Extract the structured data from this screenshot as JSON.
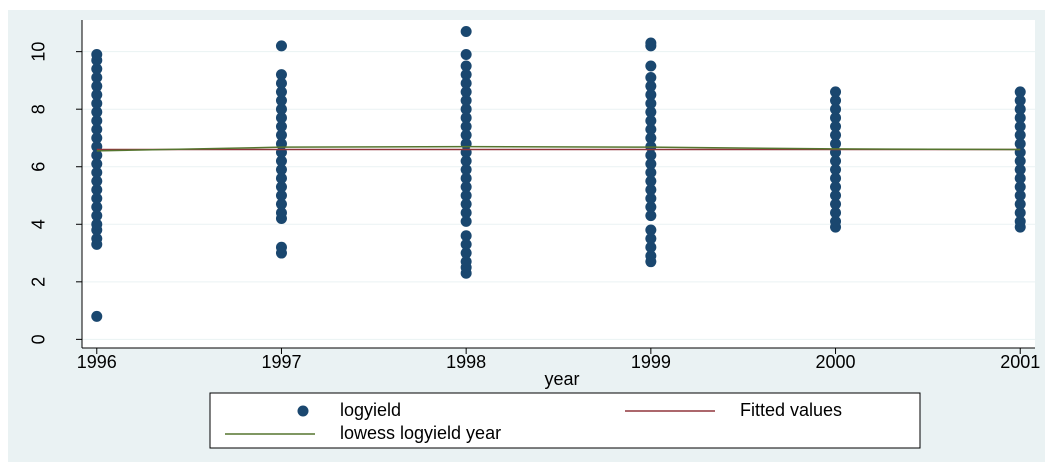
{
  "chart_data": {
    "type": "scatter",
    "x_label": "year",
    "xlim": [
      1995.92,
      2001.08
    ],
    "ylim": [
      -0.3,
      11.1
    ],
    "xticks": [
      1996,
      1997,
      1998,
      1999,
      2000,
      2001
    ],
    "yticks": [
      0,
      2,
      4,
      6,
      8,
      10
    ],
    "grid": true,
    "legend": "bottom",
    "series": [
      {
        "name": "logyield",
        "type": "scatter",
        "color": "#1a476f",
        "x": [
          1996,
          1996,
          1996,
          1996,
          1996,
          1996,
          1996,
          1996,
          1996,
          1996,
          1996,
          1996,
          1996,
          1996,
          1996,
          1996,
          1996,
          1996,
          1996,
          1996,
          1996,
          1996,
          1996,
          1996,
          1996,
          1997,
          1997,
          1997,
          1997,
          1997,
          1997,
          1997,
          1997,
          1997,
          1997,
          1997,
          1997,
          1997,
          1997,
          1997,
          1997,
          1997,
          1997,
          1997,
          1997,
          1997,
          1998,
          1998,
          1998,
          1998,
          1998,
          1998,
          1998,
          1998,
          1998,
          1998,
          1998,
          1998,
          1998,
          1998,
          1998,
          1998,
          1998,
          1998,
          1998,
          1998,
          1998,
          1998,
          1998,
          1998,
          1998,
          1998,
          1998,
          1999,
          1999,
          1999,
          1999,
          1999,
          1999,
          1999,
          1999,
          1999,
          1999,
          1999,
          1999,
          1999,
          1999,
          1999,
          1999,
          1999,
          1999,
          1999,
          1999,
          1999,
          1999,
          1999,
          1999,
          1999,
          2000,
          2000,
          2000,
          2000,
          2000,
          2000,
          2000,
          2000,
          2000,
          2000,
          2000,
          2000,
          2000,
          2000,
          2000,
          2000,
          2000,
          2001,
          2001,
          2001,
          2001,
          2001,
          2001,
          2001,
          2001,
          2001,
          2001,
          2001,
          2001,
          2001,
          2001,
          2001,
          2001,
          2001
        ],
        "values": [
          0.8,
          3.3,
          3.5,
          3.8,
          4.0,
          4.3,
          4.6,
          4.9,
          5.2,
          5.5,
          5.8,
          6.1,
          6.4,
          6.7,
          7.0,
          7.3,
          7.6,
          7.9,
          8.2,
          8.5,
          8.8,
          9.1,
          9.4,
          9.7,
          9.9,
          3.0,
          3.2,
          4.2,
          4.4,
          4.7,
          5.0,
          5.3,
          5.6,
          5.9,
          6.2,
          6.5,
          6.8,
          7.1,
          7.4,
          7.7,
          8.0,
          8.3,
          8.6,
          8.9,
          9.2,
          10.2,
          2.3,
          2.5,
          2.7,
          3.0,
          3.3,
          3.6,
          4.1,
          4.4,
          4.7,
          5.0,
          5.3,
          5.6,
          5.9,
          6.2,
          6.5,
          6.8,
          7.1,
          7.4,
          7.7,
          8.0,
          8.3,
          8.6,
          8.9,
          9.2,
          9.5,
          9.9,
          10.7,
          2.7,
          2.9,
          3.2,
          3.5,
          3.8,
          4.3,
          4.6,
          4.9,
          5.2,
          5.5,
          5.8,
          6.1,
          6.4,
          6.7,
          7.0,
          7.3,
          7.6,
          7.9,
          8.2,
          8.5,
          8.8,
          9.1,
          9.5,
          10.2,
          10.3,
          3.9,
          4.1,
          4.4,
          4.7,
          5.0,
          5.3,
          5.6,
          5.9,
          6.2,
          6.5,
          6.8,
          7.1,
          7.4,
          7.7,
          8.0,
          8.3,
          8.6,
          3.9,
          4.1,
          4.4,
          4.7,
          5.0,
          5.3,
          5.6,
          5.9,
          6.2,
          6.5,
          6.8,
          7.1,
          7.4,
          7.7,
          8.0,
          8.3,
          8.6
        ]
      },
      {
        "name": "Fitted values",
        "type": "line",
        "color": "#90353b",
        "x": [
          1996,
          2001
        ],
        "values": [
          6.6,
          6.6
        ]
      },
      {
        "name": "lowess logyield year",
        "type": "line",
        "color": "#55752f",
        "x": [
          1996,
          1997,
          1998,
          1999,
          2000,
          2001
        ],
        "values": [
          6.55,
          6.68,
          6.7,
          6.68,
          6.62,
          6.6
        ]
      }
    ]
  }
}
